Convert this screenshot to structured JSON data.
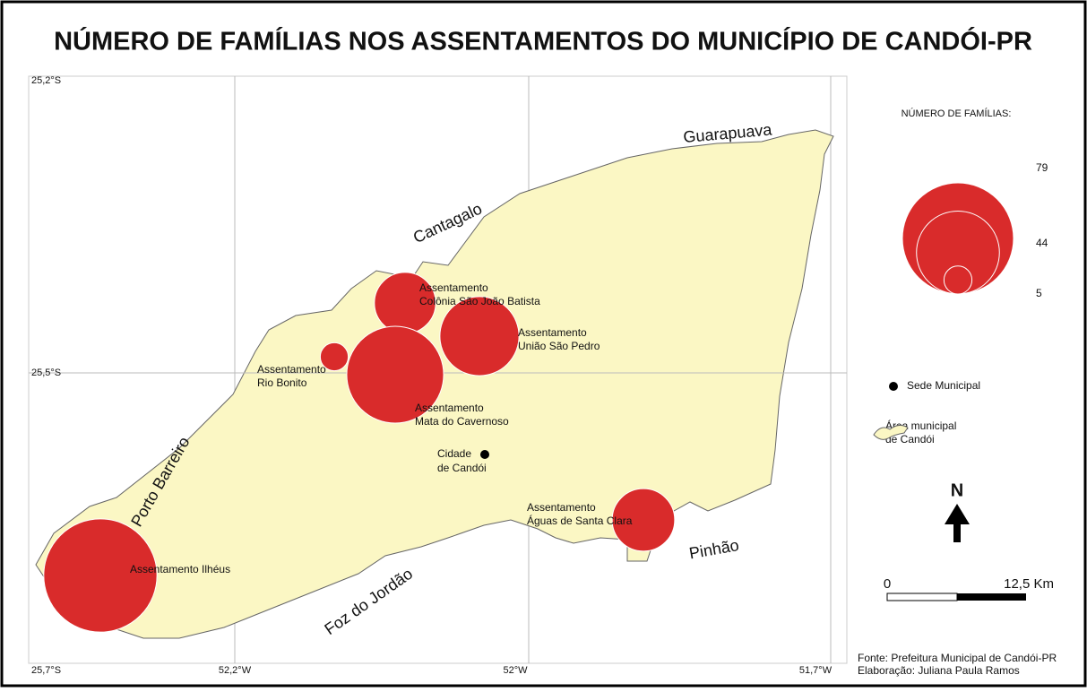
{
  "title": "NÚMERO DE FAMÍLIAS NOS ASSENTAMENTOS DO MUNICÍPIO DE CANDÓI-PR",
  "coordinates": [
    "25,2°S",
    "25,5°S",
    "25,7°S",
    "52,2°W",
    "52°W",
    "51,7°W"
  ],
  "neighbors": [
    "Guarapuava",
    "Cantagalo",
    "Porto Barreiro",
    "Foz do Jordão",
    "Pinhão"
  ],
  "settlements": [
    {
      "label_lines": [
        "Assentamento Ilhéus"
      ],
      "families": 82
    },
    {
      "label_lines": [
        "Assentamento",
        "Colônia São João Batista"
      ],
      "families": 24
    },
    {
      "label_lines": [
        "Assentamento",
        "União São Pedro"
      ],
      "families": 40
    },
    {
      "label_lines": [
        "Assentamento",
        "Rio Bonito"
      ],
      "families": 5
    },
    {
      "label_lines": [
        "Assentamento",
        "Mata do Cavernoso"
      ],
      "families": 60
    },
    {
      "label_lines": [
        "Assentamento",
        "Águas de Santa Clara"
      ],
      "families": 25
    }
  ],
  "city": {
    "label_lines": [
      "Cidade",
      "de Candói"
    ]
  },
  "legend": {
    "title": "NÚMERO DE FAMÍLIAS:",
    "values": [
      79,
      44,
      5
    ],
    "sede": "Sede Municipal",
    "area_lines": [
      "Área municipal",
      "de Candói"
    ]
  },
  "north": "N",
  "scale": {
    "start": "0",
    "end": "12,5 Km"
  },
  "source": [
    "Fonte: Prefeitura Municipal de Candói-PR",
    "Elaboração: Juliana Paula Ramos"
  ]
}
